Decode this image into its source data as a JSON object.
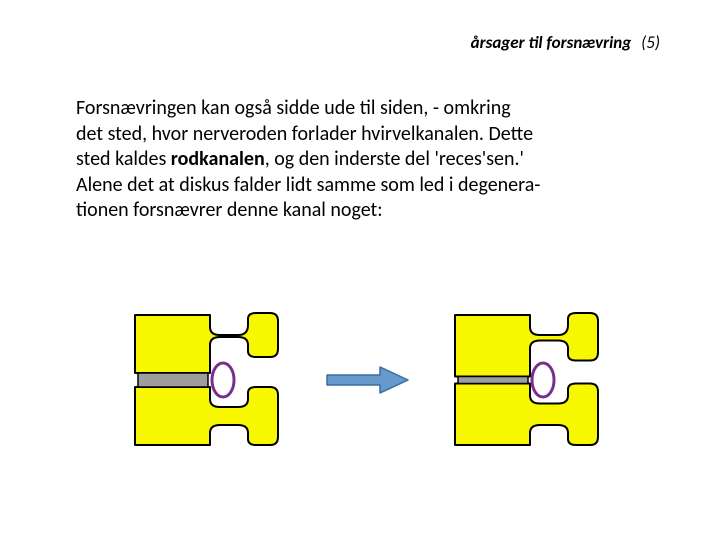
{
  "header": {
    "label": "årsager til forsnævring",
    "num": "(5)"
  },
  "paragraph": {
    "line1": "Forsnævringen kan også sidde ude til siden, - omkring",
    "line2": "det sted, hvor nerveroden forlader hvirvelkanalen. Dette",
    "line3a": "sted kaldes ",
    "kw": "rodkanalen",
    "line3b": ", og den inderste del 'reces'sen.'",
    "line4": "Alene det at diskus falder lidt samme som led i degenera-",
    "line5": "tionen forsnævrer denne kanal noget:"
  },
  "diagram": {
    "vertebra_fill": "#f7f700",
    "vertebra_stroke": "#000000",
    "vertebra_stroke_width": 2,
    "disc_fill": "#9e9e9e",
    "disc_stroke": "#000000",
    "ring_stroke": "#7a2f8f",
    "ring_fill": "#ffffff",
    "ring_stroke_width": 3,
    "arrow_fill": "#6699cc",
    "arrow_stroke": "#3a6ea5",
    "left_gap": 14,
    "right_gap": 7
  }
}
